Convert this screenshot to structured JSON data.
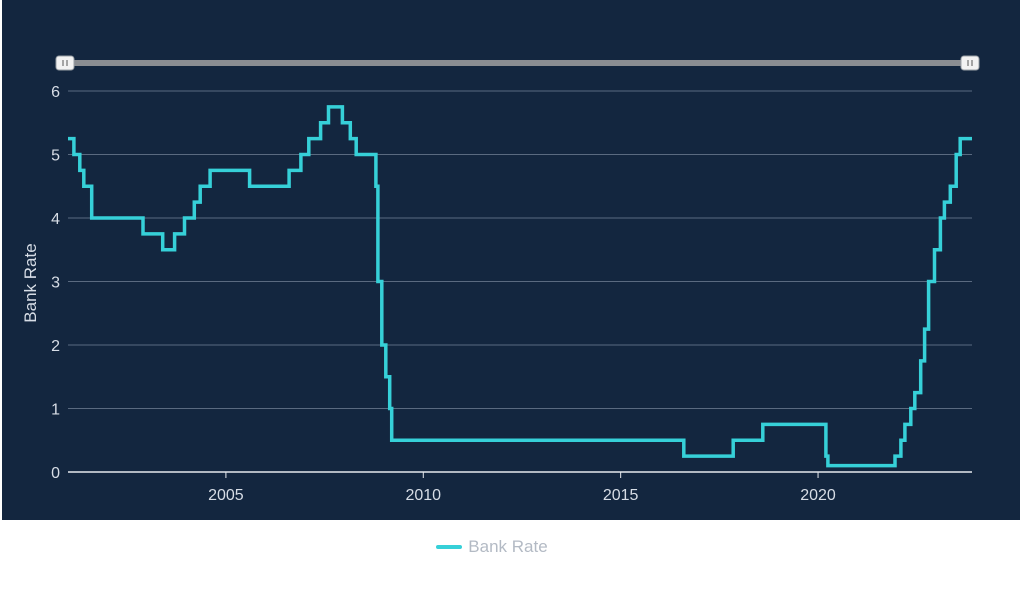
{
  "legend": {
    "label": "Bank Rate"
  },
  "colors": {
    "series": "#36d0d8",
    "background": "#13263f",
    "navigator_track": "#8a8d92",
    "handle": "#f2f2f2"
  },
  "navigator": {
    "left_handle_icon": "grip-icon",
    "right_handle_icon": "grip-icon"
  },
  "chart_data": {
    "type": "line",
    "line_style": "step",
    "title": "",
    "xlabel": "",
    "ylabel": "Bank Rate",
    "xlim": [
      2001.0,
      2023.9
    ],
    "ylim": [
      0,
      6
    ],
    "x_ticks": [
      2005,
      2010,
      2015,
      2020
    ],
    "x_tick_labels": [
      "2005",
      "2010",
      "2015",
      "2020"
    ],
    "y_ticks": [
      0,
      1,
      2,
      3,
      4,
      5,
      6
    ],
    "y_tick_labels": [
      "0",
      "1",
      "2",
      "3",
      "4",
      "5",
      "6"
    ],
    "grid": "horizontal",
    "legend_position": "bottom-center",
    "series": [
      {
        "name": "Bank Rate",
        "points": [
          [
            2001.0,
            5.25
          ],
          [
            2001.15,
            5.0
          ],
          [
            2001.3,
            4.75
          ],
          [
            2001.4,
            4.5
          ],
          [
            2001.6,
            4.0
          ],
          [
            2002.9,
            3.75
          ],
          [
            2003.4,
            3.5
          ],
          [
            2003.7,
            3.75
          ],
          [
            2003.95,
            4.0
          ],
          [
            2004.2,
            4.25
          ],
          [
            2004.35,
            4.5
          ],
          [
            2004.6,
            4.75
          ],
          [
            2005.6,
            4.5
          ],
          [
            2006.6,
            4.75
          ],
          [
            2006.9,
            5.0
          ],
          [
            2007.1,
            5.25
          ],
          [
            2007.4,
            5.5
          ],
          [
            2007.6,
            5.75
          ],
          [
            2007.95,
            5.5
          ],
          [
            2008.15,
            5.25
          ],
          [
            2008.3,
            5.0
          ],
          [
            2008.8,
            4.5
          ],
          [
            2008.85,
            3.0
          ],
          [
            2008.95,
            2.0
          ],
          [
            2009.05,
            1.5
          ],
          [
            2009.15,
            1.0
          ],
          [
            2009.2,
            0.5
          ],
          [
            2016.6,
            0.25
          ],
          [
            2017.85,
            0.5
          ],
          [
            2018.6,
            0.75
          ],
          [
            2020.2,
            0.25
          ],
          [
            2020.25,
            0.1
          ],
          [
            2021.95,
            0.25
          ],
          [
            2022.1,
            0.5
          ],
          [
            2022.2,
            0.75
          ],
          [
            2022.35,
            1.0
          ],
          [
            2022.45,
            1.25
          ],
          [
            2022.6,
            1.75
          ],
          [
            2022.7,
            2.25
          ],
          [
            2022.8,
            3.0
          ],
          [
            2022.95,
            3.5
          ],
          [
            2023.1,
            4.0
          ],
          [
            2023.2,
            4.25
          ],
          [
            2023.35,
            4.5
          ],
          [
            2023.5,
            5.0
          ],
          [
            2023.6,
            5.25
          ],
          [
            2023.9,
            5.25
          ]
        ]
      }
    ]
  }
}
